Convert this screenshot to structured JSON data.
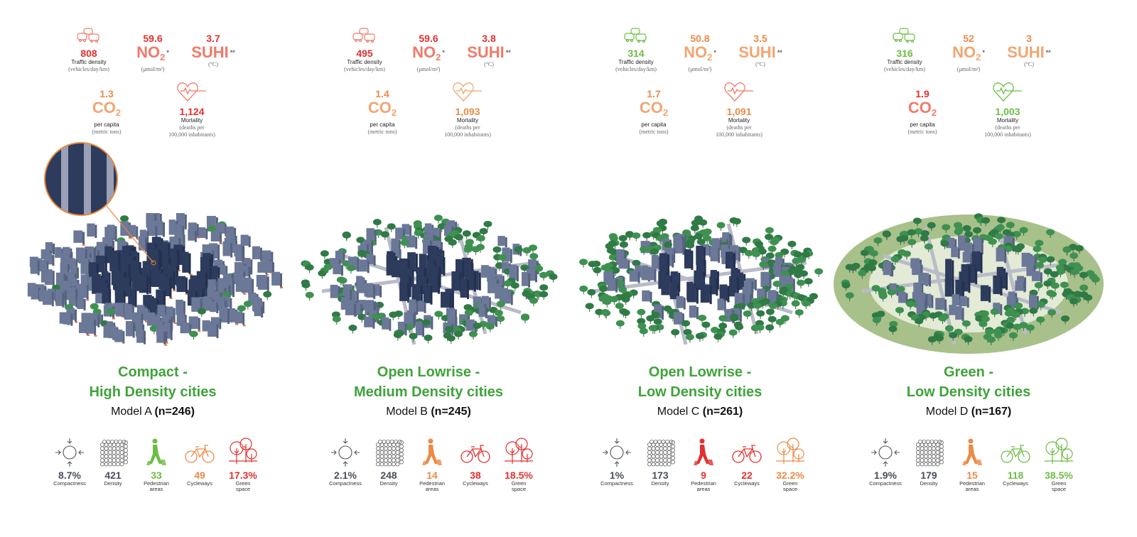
{
  "colors": {
    "red": "#e2312f",
    "salmon": "#ef7b6a",
    "orange": "#ec8a48",
    "light_orange": "#f2a571",
    "green": "#6dbd45",
    "title_green": "#3fa33a",
    "gray": "#4a4f5c"
  },
  "labels": {
    "traffic": "Traffic density",
    "traffic_unit": "(vehicles/day/km)",
    "no2": "NO",
    "no2_sub": "2",
    "no2_unit": "(μmol/m²)",
    "no2_star": "*",
    "suhi": "SUHI",
    "suhi_unit": "(°C)",
    "suhi_star": "**",
    "co2": "CO",
    "co2_sub": "2",
    "co2_lbl": "per capita",
    "co2_unit": "(metric tons)",
    "mortality": "Mortality",
    "mortality_unit1": "(deaths per",
    "mortality_unit2": "100,000 inhabitants)",
    "compactness": "Compactness",
    "density": "Density",
    "pedestrian1": "Pedestrian",
    "pedestrian2": "areas",
    "cycleways": "Cycleways",
    "green1": "Green",
    "green2": "space"
  },
  "models": [
    {
      "title1": "Compact -",
      "title2": "High Density cities",
      "model": "Model A",
      "n": "(n=246)",
      "traffic": "808",
      "no2": "59.6",
      "suhi": "3.7",
      "co2": "1.3",
      "mortality": "1,124",
      "compactness": "8.7%",
      "density": "421",
      "pedestrian": "33",
      "cycleways": "49",
      "green_space": "17.3%"
    },
    {
      "title1": "Open Lowrise -",
      "title2": "Medium Density cities",
      "model": "Model B",
      "n": "(n=245)",
      "traffic": "495",
      "no2": "59.6",
      "suhi": "3.8",
      "co2": "1.4",
      "mortality": "1,093",
      "compactness": "2.1%",
      "density": "248",
      "pedestrian": "14",
      "cycleways": "38",
      "green_space": "18.5%"
    },
    {
      "title1": "Open Lowrise -",
      "title2": "Low Density cities",
      "model": "Model C",
      "n": "(n=261)",
      "traffic": "314",
      "no2": "50.8",
      "suhi": "3.5",
      "co2": "1.7",
      "mortality": "1,091",
      "compactness": "1%",
      "density": "173",
      "pedestrian": "9",
      "cycleways": "22",
      "green_space": "32.2%"
    },
    {
      "title1": "Green -",
      "title2": "Low Density cities",
      "model": "Model D",
      "n": "(n=167)",
      "traffic": "316",
      "no2": "52",
      "suhi": "3",
      "co2": "1.9",
      "mortality": "1,003",
      "compactness": "1.9%",
      "density": "179",
      "pedestrian": "15",
      "cycleways": "118",
      "green_space": "38.5%"
    }
  ]
}
